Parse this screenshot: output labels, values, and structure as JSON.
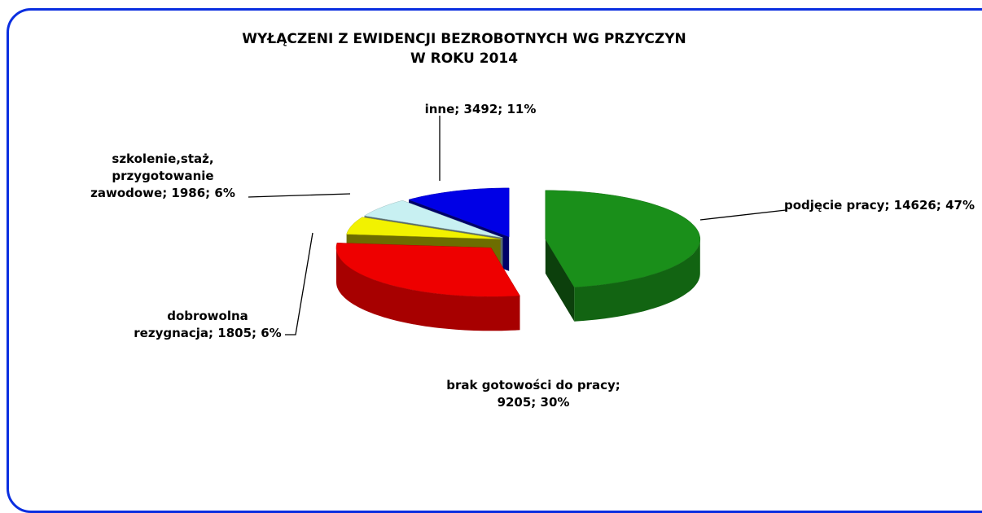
{
  "chart_data": {
    "type": "pie3d",
    "title": "WYŁĄCZENI Z EWIDENCJI BEZROBOTNYCH WG PRZYCZYN",
    "subtitle": "W ROKU 2014",
    "values": [
      14626,
      9205,
      1805,
      1986,
      3492
    ],
    "value_labels": [
      "podjęcie pracy; 14626; 47%",
      "brak gotowości do pracy; 9205; 30%",
      "dobrowolna rezygnacja; 1805; 6%",
      "szkolenie,staż, przygotowanie zawodowe; 1986; 6%",
      "inne; 3492; 11%"
    ],
    "colors": [
      "#1a8f1a",
      "#ee0000",
      "#f2f200",
      "#c8f0f2",
      "#0000e6"
    ]
  }
}
